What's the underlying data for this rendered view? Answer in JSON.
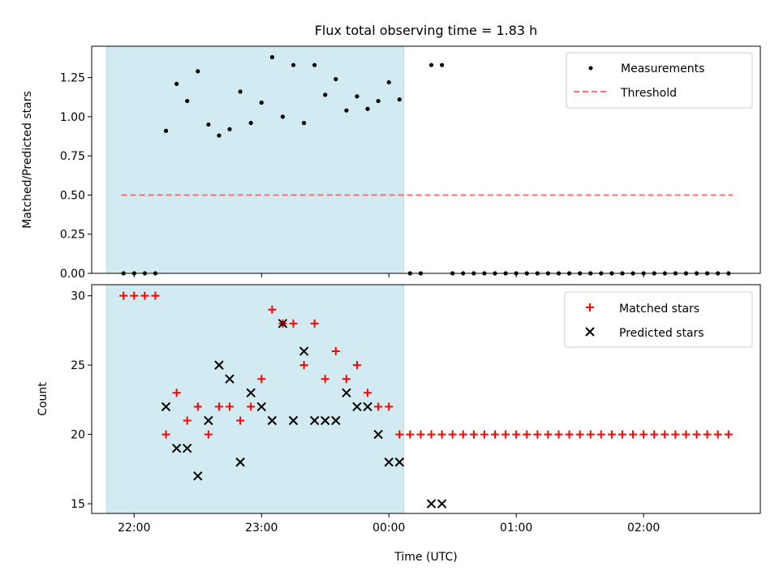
{
  "chart_data": [
    {
      "type": "scatter",
      "title": "Flux total observing time = 1.83 h",
      "xlabel": "",
      "ylabel": "Matched/Predicted stars",
      "ylim": [
        0,
        1.45
      ],
      "yticks": [
        0.0,
        0.25,
        0.5,
        0.75,
        1.0,
        1.25
      ],
      "yticklabels": [
        "0.00",
        "0.25",
        "0.50",
        "0.75",
        "1.00",
        "1.25"
      ],
      "xlim": [
        "21:40",
        "02:55"
      ],
      "shaded_span": [
        "21:47",
        "00:07"
      ],
      "shade_color": "#add8e6",
      "legend": {
        "placement": "top-right",
        "entries": [
          {
            "label": "Measurements",
            "marker": "dot",
            "color": "#000000"
          },
          {
            "label": "Threshold",
            "marker": "dashed-line",
            "color": "#ff7070"
          }
        ]
      },
      "threshold": {
        "value": 0.5,
        "x_start": "21:54",
        "x_end": "02:42"
      },
      "series": [
        {
          "name": "Measurements",
          "color": "#000000",
          "points": [
            [
              "21:55",
              0
            ],
            [
              "22:00",
              0
            ],
            [
              "22:05",
              0
            ],
            [
              "22:10",
              0
            ],
            [
              "22:15",
              0.91
            ],
            [
              "22:20",
              1.21
            ],
            [
              "22:25",
              1.1
            ],
            [
              "22:30",
              1.29
            ],
            [
              "22:35",
              0.95
            ],
            [
              "22:40",
              0.88
            ],
            [
              "22:45",
              0.92
            ],
            [
              "22:50",
              1.16
            ],
            [
              "22:55",
              0.96
            ],
            [
              "23:00",
              1.09
            ],
            [
              "23:05",
              1.38
            ],
            [
              "23:10",
              1.0
            ],
            [
              "23:15",
              1.33
            ],
            [
              "23:20",
              0.96
            ],
            [
              "23:25",
              1.33
            ],
            [
              "23:30",
              1.14
            ],
            [
              "23:35",
              1.24
            ],
            [
              "23:40",
              1.04
            ],
            [
              "23:45",
              1.13
            ],
            [
              "23:50",
              1.05
            ],
            [
              "23:55",
              1.1
            ],
            [
              "00:00",
              1.22
            ],
            [
              "00:05",
              1.11
            ],
            [
              "00:10",
              0
            ],
            [
              "00:15",
              0
            ],
            [
              "00:20",
              1.33
            ],
            [
              "00:25",
              1.33
            ],
            [
              "00:30",
              0
            ],
            [
              "00:35",
              0
            ],
            [
              "00:40",
              0
            ],
            [
              "00:45",
              0
            ],
            [
              "00:50",
              0
            ],
            [
              "00:55",
              0
            ],
            [
              "01:00",
              0
            ],
            [
              "01:05",
              0
            ],
            [
              "01:10",
              0
            ],
            [
              "01:15",
              0
            ],
            [
              "01:20",
              0
            ],
            [
              "01:25",
              0
            ],
            [
              "01:30",
              0
            ],
            [
              "01:35",
              0
            ],
            [
              "01:40",
              0
            ],
            [
              "01:45",
              0
            ],
            [
              "01:50",
              0
            ],
            [
              "01:55",
              0
            ],
            [
              "02:00",
              0
            ],
            [
              "02:05",
              0
            ],
            [
              "02:10",
              0
            ],
            [
              "02:15",
              0
            ],
            [
              "02:20",
              0
            ],
            [
              "02:25",
              0
            ],
            [
              "02:30",
              0
            ],
            [
              "02:35",
              0
            ],
            [
              "02:40",
              0
            ]
          ]
        }
      ]
    },
    {
      "type": "scatter",
      "title": "",
      "xlabel": "Time (UTC)",
      "ylabel": "Count",
      "ylim": [
        14.3,
        30.8
      ],
      "yticks": [
        15,
        20,
        25,
        30
      ],
      "yticklabels": [
        "15",
        "20",
        "25",
        "30"
      ],
      "xlim": [
        "21:40",
        "02:55"
      ],
      "xticks": [
        "22:00",
        "23:00",
        "00:00",
        "01:00",
        "02:00"
      ],
      "xticklabels": [
        "22:00",
        "23:00",
        "00:00",
        "01:00",
        "02:00"
      ],
      "shaded_span": [
        "21:47",
        "00:07"
      ],
      "shade_color": "#add8e6",
      "legend": {
        "placement": "top-right",
        "entries": [
          {
            "label": "Matched stars",
            "marker": "plus",
            "color": "#ff0000"
          },
          {
            "label": "Predicted stars",
            "marker": "x",
            "color": "#000000"
          }
        ]
      },
      "series": [
        {
          "name": "Matched stars",
          "color": "#ff0000",
          "points": [
            [
              "21:55",
              30
            ],
            [
              "22:00",
              30
            ],
            [
              "22:05",
              30
            ],
            [
              "22:10",
              30
            ],
            [
              "22:15",
              20
            ],
            [
              "22:20",
              23
            ],
            [
              "22:25",
              21
            ],
            [
              "22:30",
              22
            ],
            [
              "22:35",
              20
            ],
            [
              "22:40",
              22
            ],
            [
              "22:45",
              22
            ],
            [
              "22:50",
              21
            ],
            [
              "22:55",
              22
            ],
            [
              "23:00",
              24
            ],
            [
              "23:05",
              29
            ],
            [
              "23:10",
              28
            ],
            [
              "23:15",
              28
            ],
            [
              "23:20",
              25
            ],
            [
              "23:25",
              28
            ],
            [
              "23:30",
              24
            ],
            [
              "23:35",
              26
            ],
            [
              "23:40",
              24
            ],
            [
              "23:45",
              25
            ],
            [
              "23:50",
              23
            ],
            [
              "23:55",
              22
            ],
            [
              "00:00",
              22
            ],
            [
              "00:05",
              20
            ],
            [
              "00:10",
              20
            ],
            [
              "00:15",
              20
            ],
            [
              "00:20",
              20
            ],
            [
              "00:25",
              20
            ],
            [
              "00:30",
              20
            ],
            [
              "00:35",
              20
            ],
            [
              "00:40",
              20
            ],
            [
              "00:45",
              20
            ],
            [
              "00:50",
              20
            ],
            [
              "00:55",
              20
            ],
            [
              "01:00",
              20
            ],
            [
              "01:05",
              20
            ],
            [
              "01:10",
              20
            ],
            [
              "01:15",
              20
            ],
            [
              "01:20",
              20
            ],
            [
              "01:25",
              20
            ],
            [
              "01:30",
              20
            ],
            [
              "01:35",
              20
            ],
            [
              "01:40",
              20
            ],
            [
              "01:45",
              20
            ],
            [
              "01:50",
              20
            ],
            [
              "01:55",
              20
            ],
            [
              "02:00",
              20
            ],
            [
              "02:05",
              20
            ],
            [
              "02:10",
              20
            ],
            [
              "02:15",
              20
            ],
            [
              "02:20",
              20
            ],
            [
              "02:25",
              20
            ],
            [
              "02:30",
              20
            ],
            [
              "02:35",
              20
            ],
            [
              "02:40",
              20
            ]
          ]
        },
        {
          "name": "Predicted stars",
          "color": "#000000",
          "points": [
            [
              "22:15",
              22
            ],
            [
              "22:20",
              19
            ],
            [
              "22:25",
              19
            ],
            [
              "22:30",
              17
            ],
            [
              "22:35",
              21
            ],
            [
              "22:40",
              25
            ],
            [
              "22:45",
              24
            ],
            [
              "22:50",
              18
            ],
            [
              "22:55",
              23
            ],
            [
              "23:00",
              22
            ],
            [
              "23:05",
              21
            ],
            [
              "23:10",
              28
            ],
            [
              "23:15",
              21
            ],
            [
              "23:20",
              26
            ],
            [
              "23:25",
              21
            ],
            [
              "23:30",
              21
            ],
            [
              "23:35",
              21
            ],
            [
              "23:40",
              23
            ],
            [
              "23:45",
              22
            ],
            [
              "23:50",
              22
            ],
            [
              "23:55",
              20
            ],
            [
              "00:00",
              18
            ],
            [
              "00:05",
              18
            ],
            [
              "00:20",
              15
            ],
            [
              "00:25",
              15
            ]
          ]
        }
      ]
    }
  ]
}
